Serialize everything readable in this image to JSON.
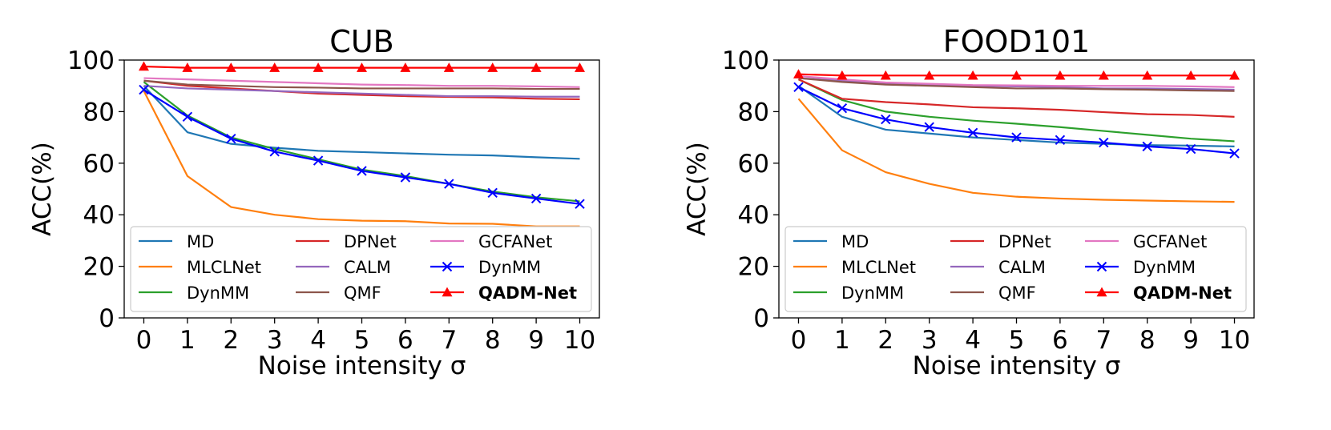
{
  "chart_data": [
    {
      "type": "line",
      "title": "CUB",
      "xlabel": "Noise intensity σ",
      "ylabel": "ACC(%)",
      "xlim": [
        -0.45,
        10.45
      ],
      "ylim": [
        0,
        100
      ],
      "xticks": [
        "0",
        "1",
        "2",
        "3",
        "4",
        "5",
        "6",
        "7",
        "8",
        "9",
        "10"
      ],
      "yticks": [
        "0",
        "20",
        "40",
        "60",
        "80",
        "100"
      ],
      "x": [
        0,
        1,
        2,
        3,
        4,
        5,
        6,
        7,
        8,
        9,
        10
      ],
      "legend_location": "lower-center",
      "series": [
        {
          "name": "MD",
          "color": "#1f77b4",
          "marker": "none",
          "values": [
            90.0,
            72.0,
            67.5,
            66.0,
            64.8,
            64.3,
            63.8,
            63.3,
            63.0,
            62.3,
            61.7
          ]
        },
        {
          "name": "MLCLNet",
          "color": "#ff7f0e",
          "marker": "none",
          "values": [
            88.0,
            55.0,
            43.0,
            40.0,
            38.3,
            37.7,
            37.5,
            36.6,
            36.5,
            35.5,
            35.5
          ]
        },
        {
          "name": "DynMM",
          "color": "#2ca02c",
          "marker": "none",
          "values": [
            91.5,
            78.5,
            70.0,
            65.5,
            61.5,
            57.5,
            55.0,
            52.0,
            49.0,
            46.8,
            45.2
          ]
        },
        {
          "name": "DPNet",
          "color": "#d62728",
          "marker": "none",
          "values": [
            92.0,
            90.0,
            89.0,
            88.0,
            87.0,
            86.5,
            86.0,
            85.7,
            85.5,
            85.0,
            84.8
          ]
        },
        {
          "name": "CALM",
          "color": "#9467bd",
          "marker": "none",
          "values": [
            90.0,
            89.0,
            88.5,
            88.0,
            87.5,
            87.0,
            86.5,
            86.0,
            86.0,
            85.8,
            85.8
          ]
        },
        {
          "name": "QMF",
          "color": "#8c564b",
          "marker": "none",
          "values": [
            92.0,
            90.5,
            90.0,
            89.5,
            89.3,
            89.0,
            89.0,
            89.0,
            89.0,
            88.8,
            88.8
          ]
        },
        {
          "name": "GCFANet",
          "color": "#e377c2",
          "marker": "none",
          "values": [
            93.0,
            92.5,
            92.0,
            91.5,
            91.0,
            90.5,
            90.3,
            90.0,
            90.0,
            89.8,
            89.5
          ]
        },
        {
          "name": "DynMM",
          "color": "#0000ff",
          "marker": "x",
          "values": [
            88.5,
            78.0,
            69.5,
            64.5,
            61.0,
            57.0,
            54.5,
            52.0,
            48.5,
            46.3,
            44.2
          ]
        },
        {
          "name": "QADM-Net",
          "color": "#ff0000",
          "marker": "triangle",
          "bold": true,
          "values": [
            97.5,
            97.0,
            97.0,
            97.0,
            97.0,
            97.0,
            97.0,
            97.0,
            97.0,
            97.0,
            97.0
          ]
        }
      ]
    },
    {
      "type": "line",
      "title": "FOOD101",
      "xlabel": "Noise intensity σ",
      "ylabel": "ACC(%)",
      "xlim": [
        -0.45,
        10.45
      ],
      "ylim": [
        0,
        100
      ],
      "xticks": [
        "0",
        "1",
        "2",
        "3",
        "4",
        "5",
        "6",
        "7",
        "8",
        "9",
        "10"
      ],
      "yticks": [
        "0",
        "20",
        "40",
        "60",
        "80",
        "100"
      ],
      "x": [
        0,
        1,
        2,
        3,
        4,
        5,
        6,
        7,
        8,
        9,
        10
      ],
      "legend_location": "lower-center",
      "series": [
        {
          "name": "MD",
          "color": "#1f77b4",
          "marker": "none",
          "values": [
            90.0,
            78.0,
            73.0,
            71.5,
            70.0,
            69.0,
            68.0,
            67.5,
            67.0,
            66.8,
            66.5
          ]
        },
        {
          "name": "MLCLNet",
          "color": "#ff7f0e",
          "marker": "none",
          "values": [
            85.0,
            65.0,
            56.5,
            52.0,
            48.5,
            47.0,
            46.3,
            45.8,
            45.5,
            45.2,
            45.0
          ]
        },
        {
          "name": "DynMM",
          "color": "#2ca02c",
          "marker": "none",
          "values": [
            92.5,
            84.5,
            80.0,
            78.0,
            76.5,
            75.3,
            74.0,
            72.5,
            71.0,
            69.5,
            68.5
          ]
        },
        {
          "name": "DPNet",
          "color": "#d62728",
          "marker": "none",
          "values": [
            92.5,
            85.0,
            83.7,
            82.8,
            81.7,
            81.3,
            80.7,
            79.8,
            79.0,
            78.7,
            78.0
          ]
        },
        {
          "name": "CALM",
          "color": "#9467bd",
          "marker": "none",
          "values": [
            93.0,
            92.0,
            91.0,
            90.5,
            90.0,
            89.8,
            89.5,
            89.0,
            89.0,
            88.8,
            88.5
          ]
        },
        {
          "name": "QMF",
          "color": "#8c564b",
          "marker": "none",
          "values": [
            93.0,
            91.5,
            90.5,
            90.0,
            89.5,
            89.0,
            89.0,
            88.7,
            88.5,
            88.2,
            88.0
          ]
        },
        {
          "name": "GCFANet",
          "color": "#e377c2",
          "marker": "none",
          "values": [
            93.8,
            92.5,
            91.3,
            90.8,
            90.3,
            90.2,
            90.0,
            90.0,
            90.0,
            89.8,
            89.5
          ]
        },
        {
          "name": "DynMM",
          "color": "#0000ff",
          "marker": "x",
          "values": [
            89.5,
            81.3,
            77.0,
            74.0,
            71.8,
            70.0,
            69.0,
            68.0,
            66.5,
            65.5,
            63.8
          ]
        },
        {
          "name": "QADM-Net",
          "color": "#ff0000",
          "marker": "triangle",
          "bold": true,
          "values": [
            94.5,
            94.0,
            94.0,
            94.0,
            94.0,
            94.0,
            94.0,
            94.0,
            94.0,
            94.0,
            94.0
          ]
        }
      ]
    }
  ]
}
